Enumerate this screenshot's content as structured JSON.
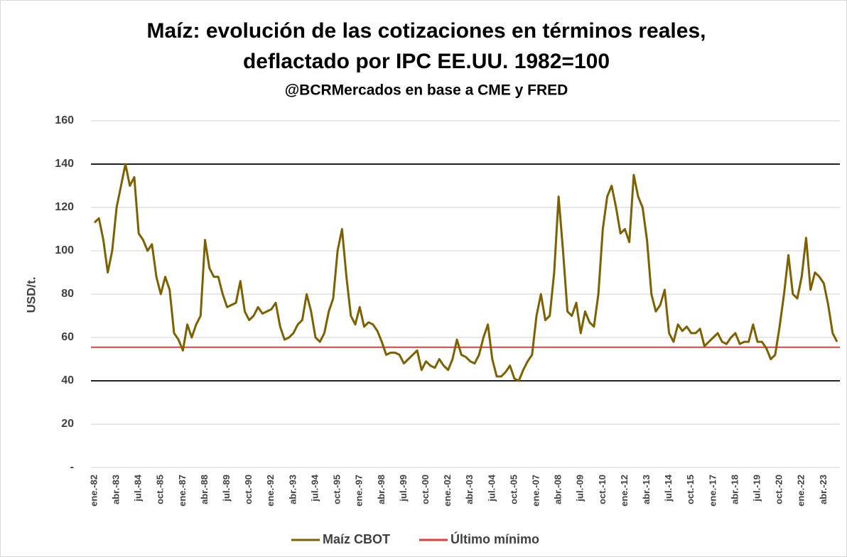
{
  "chart_data": {
    "type": "line",
    "title": "Maíz: evolución de las cotizaciones en términos reales,",
    "title_line2": "deflactado por IPC EE.UU. 1982=100",
    "subtitle": "@BCRMercados en base a CME y FRED",
    "y_label": "USD/t.",
    "categories": [
      "ene.-82",
      null,
      null,
      null,
      null,
      "abr.-83",
      null,
      null,
      null,
      null,
      "jul.-84",
      null,
      null,
      null,
      null,
      "oct.-85",
      null,
      null,
      null,
      null,
      "ene.-87",
      null,
      null,
      null,
      null,
      "abr.-88",
      null,
      null,
      null,
      null,
      "jul.-89",
      null,
      null,
      null,
      null,
      "oct.-90",
      null,
      null,
      null,
      null,
      "ene.-92",
      null,
      null,
      null,
      null,
      "abr.-93",
      null,
      null,
      null,
      null,
      "jul.-94",
      null,
      null,
      null,
      null,
      "oct.-95",
      null,
      null,
      null,
      null,
      "ene.-97",
      null,
      null,
      null,
      null,
      "abr.-98",
      null,
      null,
      null,
      null,
      "jul.-99",
      null,
      null,
      null,
      null,
      "oct.-00",
      null,
      null,
      null,
      null,
      "ene.-02",
      null,
      null,
      null,
      null,
      "abr.-03",
      null,
      null,
      null,
      null,
      "jul.-04",
      null,
      null,
      null,
      null,
      "oct.-05",
      null,
      null,
      null,
      null,
      "ene.-07",
      null,
      null,
      null,
      null,
      "abr.-08",
      null,
      null,
      null,
      null,
      "jul.-09",
      null,
      null,
      null,
      null,
      "oct.-10",
      null,
      null,
      null,
      null,
      "ene.-12",
      null,
      null,
      null,
      null,
      "abr.-13",
      null,
      null,
      null,
      null,
      "jul.-14",
      null,
      null,
      null,
      null,
      "oct.-15",
      null,
      null,
      null,
      null,
      "ene.-17",
      null,
      null,
      null,
      null,
      "abr.-18",
      null,
      null,
      null,
      null,
      "jul.-19",
      null,
      null,
      null,
      null,
      "oct.-20",
      null,
      null,
      null,
      null,
      "ene.-22",
      null,
      null,
      null,
      null,
      "abr.-23",
      null,
      null,
      null
    ],
    "series": [
      {
        "name": "Maíz CBOT",
        "color": "#7f6000",
        "values": [
          113,
          115,
          105,
          90,
          100,
          120,
          130,
          140,
          130,
          134,
          108,
          105,
          100,
          103,
          88,
          80,
          88,
          82,
          62,
          59,
          54,
          66,
          60,
          66,
          70,
          105,
          92,
          88,
          88,
          80,
          74,
          75,
          76,
          86,
          72,
          68,
          70,
          74,
          71,
          72,
          73,
          76,
          65,
          59,
          60,
          62,
          66,
          68,
          80,
          72,
          60,
          58,
          62,
          72,
          78,
          100,
          110,
          88,
          70,
          66,
          74,
          65,
          67,
          66,
          63,
          58,
          52,
          53,
          53,
          52,
          48,
          50,
          52,
          54,
          45,
          49,
          47,
          46,
          50,
          47,
          45,
          50,
          59,
          52,
          51,
          49,
          48,
          52,
          60,
          66,
          50,
          42,
          42,
          44,
          47,
          41,
          40,
          45,
          49,
          52,
          70,
          80,
          68,
          70,
          90,
          125,
          100,
          72,
          70,
          76,
          62,
          72,
          67,
          65,
          80,
          110,
          125,
          130,
          120,
          108,
          110,
          104,
          135,
          125,
          120,
          105,
          80,
          72,
          75,
          82,
          62,
          58,
          66,
          63,
          65,
          62,
          62,
          64,
          56,
          58,
          60,
          62,
          58,
          57,
          60,
          62,
          57,
          58,
          58,
          66,
          58,
          58,
          55,
          50,
          52,
          65,
          80,
          98,
          80,
          78,
          88,
          106,
          82,
          90,
          88,
          85,
          75,
          62,
          58
        ]
      }
    ],
    "reference_lines": [
      {
        "name": "Último mínimo",
        "value": 55.5,
        "color": "#e03c3c"
      }
    ],
    "band_lines": [
      140,
      40
    ],
    "ylim": [
      0,
      160
    ],
    "yticks": [
      {
        "value": 0,
        "label": "-"
      },
      20,
      40,
      60,
      80,
      100,
      120,
      140,
      160
    ],
    "grid": true
  }
}
